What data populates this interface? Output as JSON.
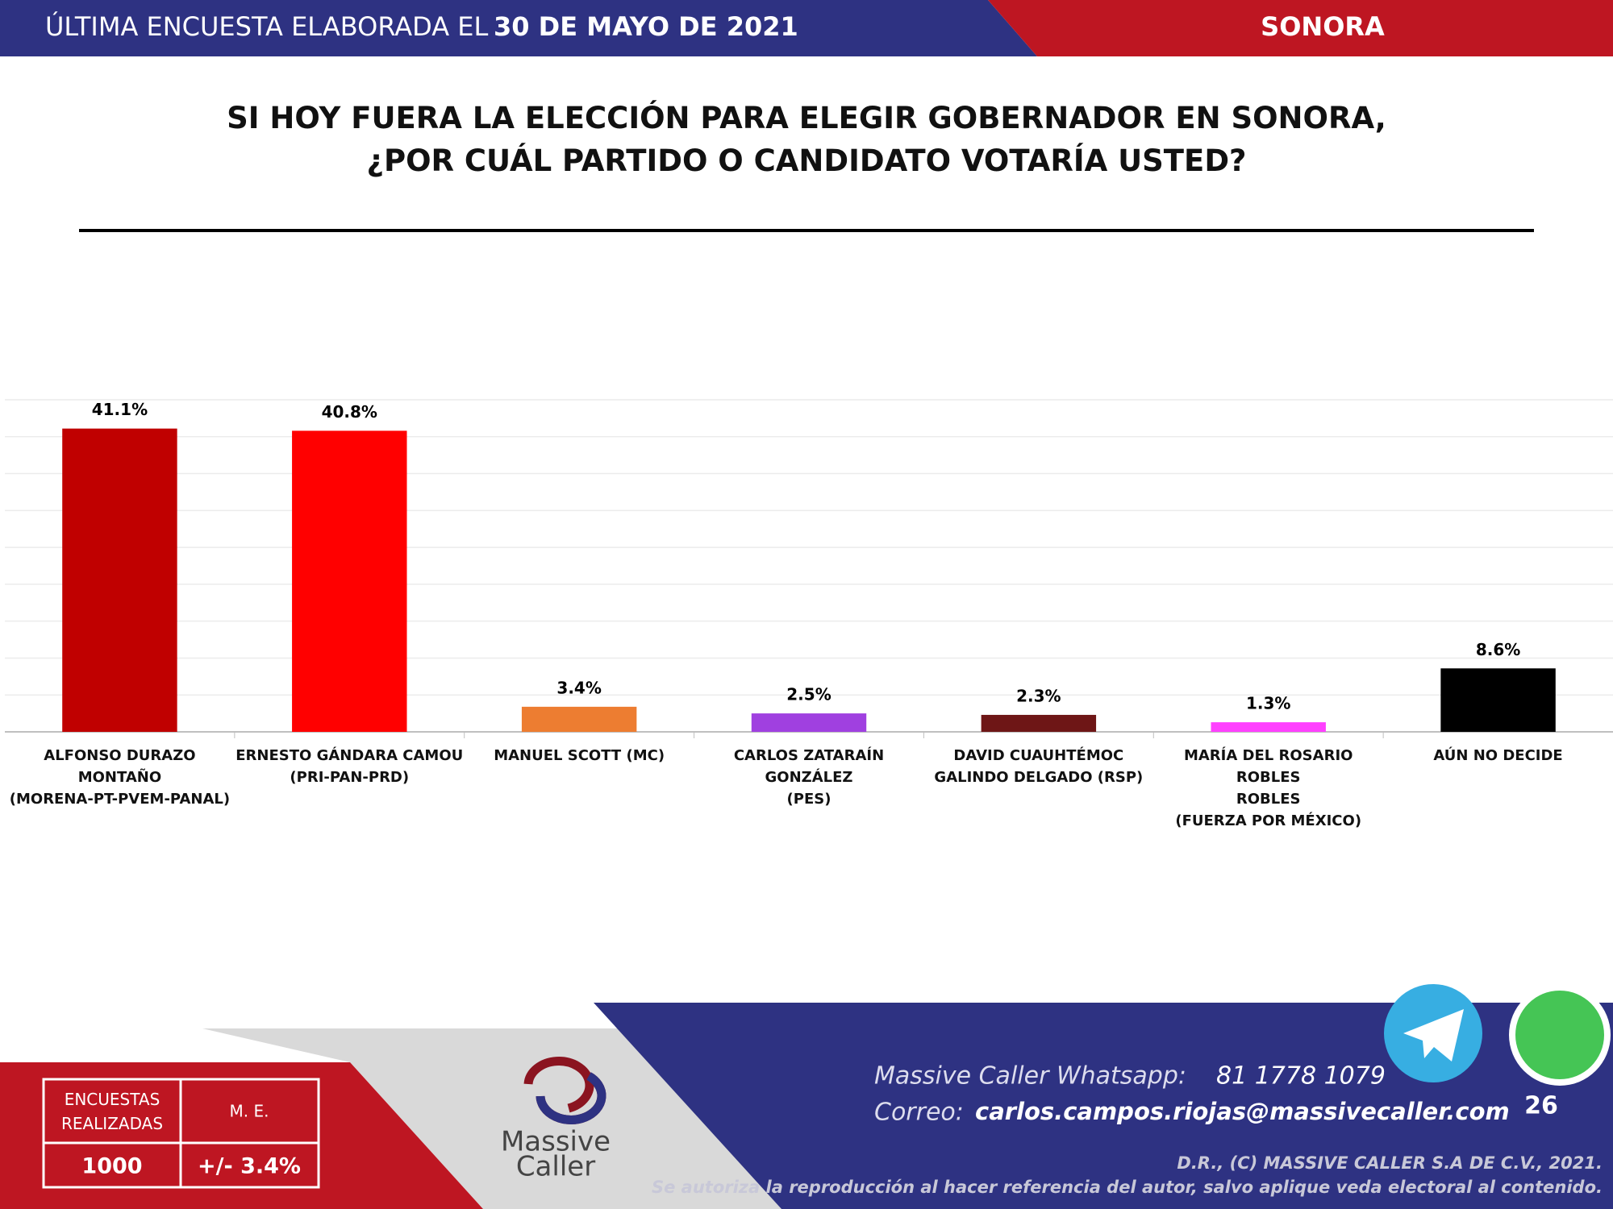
{
  "header": {
    "prefix": "ÚLTIMA ENCUESTA ELABORADA EL",
    "date": "30 DE MAYO DE 2021",
    "state": "SONORA"
  },
  "chart_data": {
    "type": "bar",
    "title": "SI HOY FUERA LA ELECCIÓN PARA ELEGIR GOBERNADOR EN SONORA,\n¿POR CUÁL PARTIDO O CANDIDATO VOTARÍA USTED?",
    "categories": [
      "ALFONSO DURAZO MONTAÑO\n(MORENA-PT-PVEM-PANAL)",
      "ERNESTO GÁNDARA CAMOU\n(PRI-PAN-PRD)",
      "MANUEL SCOTT (MC)",
      "CARLOS ZATARAÍN GONZÁLEZ\n(PES)",
      "DAVID CUAUHTÉMOC\nGALINDO DELGADO (RSP)",
      "MARÍA DEL ROSARIO ROBLES\nROBLES\n(FUERZA POR MÉXICO)",
      "AÚN NO DECIDE"
    ],
    "values": [
      41.1,
      40.8,
      3.4,
      2.5,
      2.3,
      1.3,
      8.6
    ],
    "value_labels": [
      "41.1%",
      "40.8%",
      "3.4%",
      "2.5%",
      "2.3%",
      "1.3%",
      "8.6%"
    ],
    "colors": [
      "#c00000",
      "#ff0000",
      "#ed7d31",
      "#a040e0",
      "#6e1616",
      "#ff40ff",
      "#000000"
    ],
    "ylim": [
      0,
      45
    ],
    "yticks": [
      0,
      5,
      10,
      15,
      20,
      25,
      30,
      35,
      40,
      45
    ],
    "grid": true
  },
  "footer": {
    "survey_header": "ENCUESTAS\nREALIZADAS",
    "margin_header": "M. E.",
    "surveys": "1000",
    "margin": "+/- 3.4%",
    "logo_top": "Massive",
    "logo_bottom": "Caller",
    "whatsapp_label": "Massive Caller Whatsapp:",
    "whatsapp": "81 1778 1079",
    "email_label": "Correo:",
    "email": "carlos.campos.riojas@massivecaller.com",
    "page": "26",
    "copyright": "D.R., (C) MASSIVE CALLER S.A DE C.V., 2021.",
    "notice": "Se autoriza la reproducción al hacer referencia del autor, salvo aplique veda electoral al contenido."
  }
}
